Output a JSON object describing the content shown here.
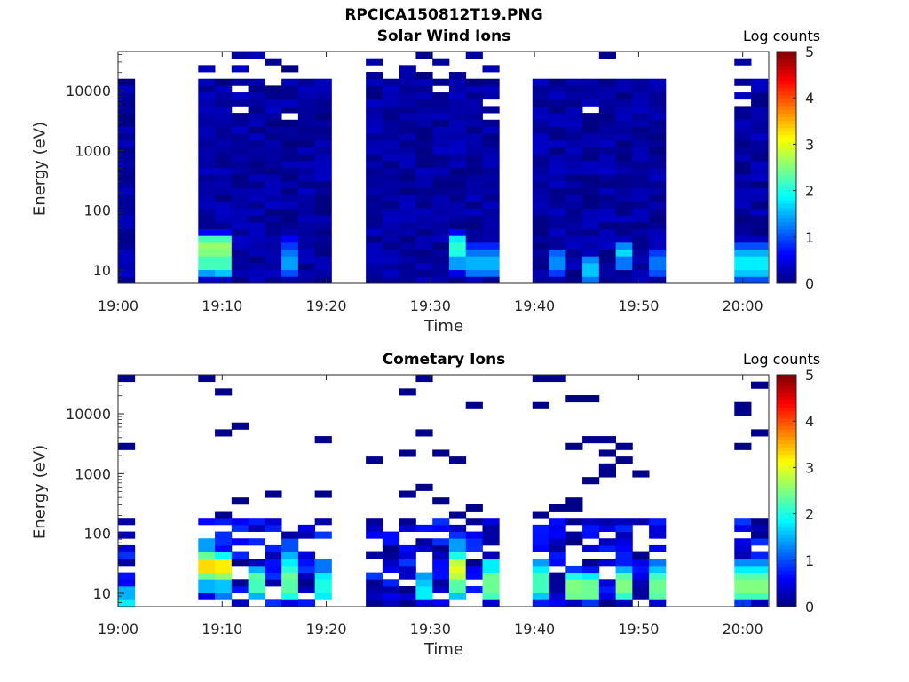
{
  "figure_title": "RPCICA150812T19.PNG",
  "chart_data": [
    {
      "type": "heatmap",
      "title": "Solar Wind Ions",
      "xlabel": "Time",
      "ylabel": "Energy (eV)",
      "x_ticks": [
        "19:00",
        "19:10",
        "19:20",
        "19:30",
        "19:40",
        "19:50",
        "20:00"
      ],
      "y_ticks": [
        "10",
        "100",
        "1000",
        "10000"
      ],
      "y_scale": "log",
      "ylim": [
        6,
        45000
      ],
      "xlim_minutes": [
        0,
        62.5
      ],
      "colorbar": {
        "label": "Log counts",
        "ticks": [
          "0",
          "1",
          "2",
          "3",
          "4",
          "5"
        ],
        "range": [
          0,
          5
        ],
        "colormap": "jet"
      },
      "time_columns_minutes": [
        0,
        7.7,
        9.3,
        10.9,
        12.5,
        14.1,
        15.7,
        17.3,
        18.9,
        23.8,
        25.4,
        27,
        28.6,
        30.2,
        31.8,
        33.4,
        35,
        39.8,
        41.4,
        43,
        44.6,
        46.2,
        47.8,
        49.4,
        51,
        59.2,
        60.8
      ],
      "column_width_minutes": 1.6,
      "spectra": [
        {
          "t": 9.2,
          "e": [
            8,
            10,
            14,
            20,
            25,
            30,
            35,
            45
          ],
          "v": [
            0.4,
            1.4,
            2.2,
            2.5,
            2.6,
            2.2,
            1.2,
            0.6
          ]
        },
        {
          "t": 10.5,
          "e": [
            8,
            10,
            14,
            20,
            25,
            30,
            35
          ],
          "v": [
            0.4,
            1.6,
            2.2,
            2.4,
            2.1,
            1.4,
            0.7
          ]
        },
        {
          "t": 17,
          "e": [
            10,
            14,
            20,
            25,
            30
          ],
          "v": [
            1.0,
            1.4,
            1.2,
            0.9,
            0.6
          ]
        },
        {
          "t": 32,
          "e": [
            10,
            14,
            20,
            25,
            30,
            35,
            45
          ],
          "v": [
            0.5,
            1.4,
            2.0,
            2.1,
            1.8,
            1.2,
            0.6
          ]
        },
        {
          "t": 35,
          "e": [
            10,
            14,
            20,
            25
          ],
          "v": [
            1.2,
            1.5,
            1.2,
            0.8
          ]
        },
        {
          "t": 41.8,
          "e": [
            10,
            14,
            20
          ],
          "v": [
            0.9,
            1.3,
            1.1
          ]
        },
        {
          "t": 45.3,
          "e": [
            8,
            10,
            14
          ],
          "v": [
            1.2,
            1.6,
            1.3
          ]
        },
        {
          "t": 48.6,
          "e": [
            14,
            20,
            25
          ],
          "v": [
            1.2,
            1.7,
            1.3
          ]
        },
        {
          "t": 51.8,
          "e": [
            10,
            14,
            20
          ],
          "v": [
            1.0,
            1.2,
            0.9
          ]
        },
        {
          "t": 60.8,
          "e": [
            8,
            10,
            14,
            20,
            25
          ],
          "v": [
            1.0,
            1.6,
            1.8,
            1.5,
            1.0
          ]
        }
      ]
    },
    {
      "type": "heatmap",
      "title": "Cometary Ions",
      "xlabel": "Time",
      "ylabel": "Energy (eV)",
      "x_ticks": [
        "19:00",
        "19:10",
        "19:20",
        "19:30",
        "19:40",
        "19:50",
        "20:00"
      ],
      "y_ticks": [
        "10",
        "100",
        "1000",
        "10000"
      ],
      "y_scale": "log",
      "ylim": [
        6,
        45000
      ],
      "xlim_minutes": [
        0,
        62.5
      ],
      "colorbar": {
        "label": "Log counts",
        "ticks": [
          "0",
          "1",
          "2",
          "3",
          "4",
          "5"
        ],
        "range": [
          0,
          5
        ],
        "colormap": "jet"
      },
      "time_columns_minutes": [
        0,
        7.7,
        9.3,
        10.9,
        12.5,
        14.1,
        15.7,
        17.3,
        18.9,
        23.8,
        25.4,
        27,
        28.6,
        30.2,
        31.8,
        33.4,
        35,
        39.8,
        41.4,
        43,
        44.6,
        46.2,
        47.8,
        49.4,
        51,
        59.2,
        60.8
      ],
      "column_width_minutes": 1.6,
      "spectra": [
        {
          "t": 0.5,
          "e": [
            7,
            10,
            14
          ],
          "v": [
            1.8,
            1.5,
            0.6
          ]
        },
        {
          "t": 8.7,
          "e": [
            10,
            14,
            20,
            25,
            30,
            35,
            45,
            60
          ],
          "v": [
            0.5,
            1.5,
            2.4,
            3.0,
            3.3,
            3.1,
            2.4,
            1.4
          ]
        },
        {
          "t": 10.3,
          "e": [
            10,
            14,
            20,
            25,
            30,
            35,
            45
          ],
          "v": [
            1.2,
            1.6,
            2.6,
            3.1,
            3.2,
            2.8,
            1.9
          ]
        },
        {
          "t": 13,
          "e": [
            10,
            14,
            20,
            25
          ],
          "v": [
            1.5,
            2.2,
            2.3,
            1.5
          ]
        },
        {
          "t": 16.3,
          "e": [
            10,
            14,
            20,
            25,
            30,
            40,
            60
          ],
          "v": [
            2.0,
            2.3,
            2.4,
            2.1,
            1.8,
            1.5,
            1.0
          ]
        },
        {
          "t": 19.6,
          "e": [
            10,
            14,
            20,
            30
          ],
          "v": [
            1.8,
            2.0,
            1.8,
            1.2
          ]
        },
        {
          "t": 29.1,
          "e": [
            10,
            14,
            20
          ],
          "v": [
            1.8,
            1.6,
            1.4
          ]
        },
        {
          "t": 32.6,
          "e": [
            10,
            14,
            20,
            25,
            30,
            35,
            45,
            60
          ],
          "v": [
            1.6,
            2.3,
            2.8,
            3.0,
            2.8,
            2.4,
            2.0,
            1.4
          ]
        },
        {
          "t": 35.7,
          "e": [
            10,
            14,
            20,
            30
          ],
          "v": [
            2.2,
            2.4,
            2.4,
            1.8
          ]
        },
        {
          "t": 40.6,
          "e": [
            10,
            14,
            20,
            25,
            30
          ],
          "v": [
            1.6,
            2.2,
            2.2,
            1.8,
            1.4
          ]
        },
        {
          "t": 43.2,
          "e": [
            10,
            14,
            20
          ],
          "v": [
            2.4,
            2.5,
            2.0
          ]
        },
        {
          "t": 45.3,
          "e": [
            10,
            14,
            20
          ],
          "v": [
            2.4,
            2.4,
            1.8
          ]
        },
        {
          "t": 48.6,
          "e": [
            10,
            14,
            20,
            25
          ],
          "v": [
            2.1,
            2.5,
            2.3,
            1.5
          ]
        },
        {
          "t": 52,
          "e": [
            10,
            14,
            20,
            25,
            30
          ],
          "v": [
            2.3,
            2.4,
            2.2,
            1.6,
            1.2
          ]
        },
        {
          "t": 60.8,
          "e": [
            10,
            14,
            20,
            25,
            30
          ],
          "v": [
            2.2,
            2.5,
            2.3,
            1.8,
            1.3
          ]
        }
      ]
    }
  ]
}
